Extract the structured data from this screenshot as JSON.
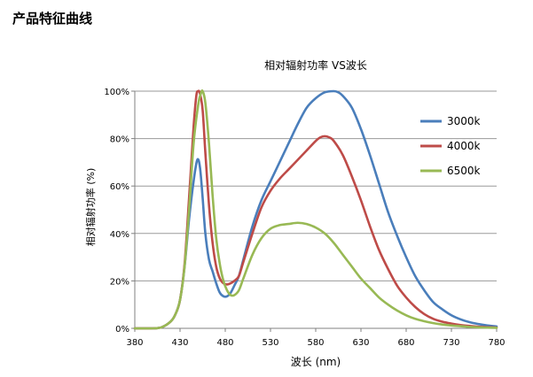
{
  "page": {
    "title": "产品特征曲线"
  },
  "chart_data": {
    "type": "line",
    "title": "相对辐射功率 VS波长",
    "xlabel": "波长 (nm)",
    "ylabel": "相对辐射功率 (%)",
    "xlim": [
      380,
      780
    ],
    "ylim": [
      0,
      100
    ],
    "xticks": [
      "380",
      "430",
      "480",
      "530",
      "580",
      "630",
      "680",
      "730",
      "780"
    ],
    "xtick_values": [
      380,
      430,
      480,
      530,
      580,
      630,
      680,
      730,
      780
    ],
    "yticks": [
      "0%",
      "20%",
      "40%",
      "60%",
      "80%",
      "100%"
    ],
    "ytick_values": [
      0,
      20,
      40,
      60,
      80,
      100
    ],
    "grid": "horizontal",
    "legend_position": "right",
    "series": [
      {
        "name": "3000k",
        "color": "#4a7ebb",
        "x": [
          380,
          400,
          410,
          420,
          425,
          430,
          435,
          440,
          445,
          449,
          452,
          455,
          458,
          462,
          466,
          470,
          474,
          478,
          482,
          486,
          490,
          495,
          500,
          510,
          520,
          530,
          540,
          550,
          560,
          570,
          580,
          590,
          600,
          605,
          610,
          620,
          630,
          640,
          650,
          660,
          670,
          680,
          690,
          700,
          710,
          720,
          730,
          740,
          750,
          760,
          770,
          780
        ],
        "y": [
          0,
          0,
          0.5,
          3,
          6,
          12,
          26,
          46,
          62,
          71,
          68,
          55,
          40,
          29,
          24,
          19,
          15,
          13.5,
          13.5,
          15,
          18,
          22,
          29,
          43,
          54,
          62,
          70,
          78,
          86,
          93,
          97,
          99.5,
          100,
          99.5,
          98,
          93,
          84,
          73,
          61,
          49,
          39,
          30,
          22,
          16,
          11,
          8,
          5.5,
          3.8,
          2.6,
          1.8,
          1.2,
          0.8
        ]
      },
      {
        "name": "4000k",
        "color": "#be4b48",
        "x": [
          380,
          400,
          410,
          420,
          425,
          430,
          435,
          440,
          445,
          448,
          450,
          452,
          455,
          458,
          462,
          466,
          470,
          474,
          478,
          482,
          486,
          490,
          495,
          500,
          510,
          520,
          530,
          540,
          550,
          560,
          570,
          580,
          585,
          590,
          595,
          600,
          610,
          620,
          630,
          640,
          650,
          660,
          670,
          680,
          690,
          700,
          710,
          720,
          730,
          740,
          750,
          760,
          770,
          780
        ],
        "y": [
          0,
          0,
          0.5,
          3,
          6,
          12,
          27,
          55,
          85,
          98,
          100,
          99,
          92,
          74,
          52,
          36,
          26,
          21,
          19,
          18.5,
          19,
          20,
          22,
          28,
          40,
          51,
          58,
          63,
          67,
          71,
          75,
          79,
          80.5,
          81,
          80.5,
          79,
          73,
          64,
          54,
          43,
          33,
          25,
          18,
          13,
          9,
          6,
          4,
          2.8,
          2,
          1.4,
          1,
          0.7,
          0.5,
          0.3
        ]
      },
      {
        "name": "6500k",
        "color": "#98b954",
        "x": [
          380,
          400,
          410,
          420,
          425,
          430,
          435,
          440,
          445,
          450,
          453,
          455,
          458,
          462,
          466,
          470,
          474,
          478,
          482,
          486,
          490,
          495,
          500,
          510,
          520,
          530,
          540,
          550,
          560,
          570,
          580,
          590,
          600,
          610,
          620,
          630,
          640,
          650,
          660,
          670,
          680,
          690,
          700,
          710,
          720,
          730,
          740,
          750,
          760,
          770,
          780
        ],
        "y": [
          0,
          0,
          0.5,
          3,
          6,
          12,
          26,
          50,
          78,
          94,
          99,
          100,
          95,
          78,
          56,
          38,
          27,
          20,
          16,
          14,
          14,
          16,
          21,
          31,
          38,
          42,
          43.5,
          44,
          44.5,
          44,
          42.5,
          40,
          36,
          31,
          26,
          21,
          17,
          13,
          10,
          7.5,
          5.5,
          4,
          3,
          2.2,
          1.6,
          1.2,
          0.9,
          0.6,
          0.4,
          0.3,
          0.2
        ]
      }
    ]
  }
}
